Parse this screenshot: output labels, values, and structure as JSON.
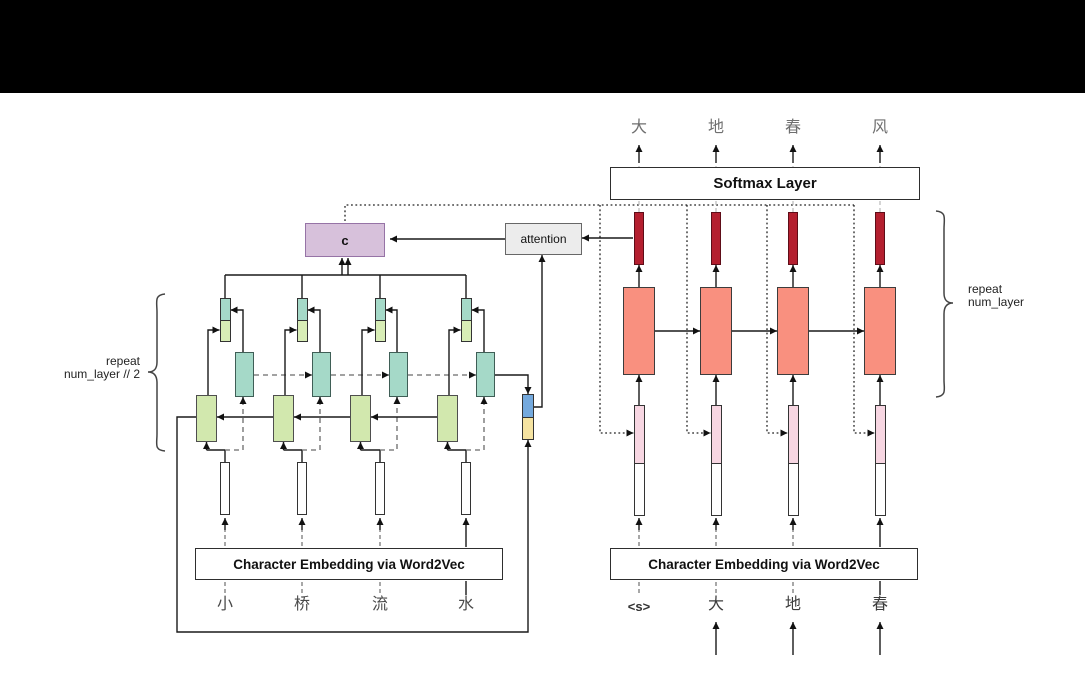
{
  "diagram": {
    "context_box_label": "c",
    "attention_box_label": "attention",
    "softmax_box_label": "Softmax Layer",
    "encoder": {
      "embedding_label": "Character Embedding via Word2Vec",
      "input_chars": [
        "小",
        "桥",
        "流",
        "水"
      ],
      "repeat_label_line1": "repeat",
      "repeat_label_line2": "num_layer // 2"
    },
    "decoder": {
      "embedding_label": "Character Embedding via Word2Vec",
      "output_chars": [
        "大",
        "地",
        "春",
        "风"
      ],
      "input_chars": [
        "<s>",
        "大",
        "地",
        "春"
      ],
      "repeat_label_line1": "repeat",
      "repeat_label_line2": "num_layer"
    },
    "colors": {
      "teal": "#a5d9c8",
      "green": "#d2e8ae",
      "small_green": "#d8edb6",
      "salmon": "#f9907f",
      "red": "#b41f2f",
      "pink": "#f7d6e2",
      "blue": "#74a9dd",
      "yellow": "#f5e3a1",
      "lavender": "#d7c1db",
      "lavender_border": "#9673a6",
      "attention_fill": "#ececec"
    }
  }
}
